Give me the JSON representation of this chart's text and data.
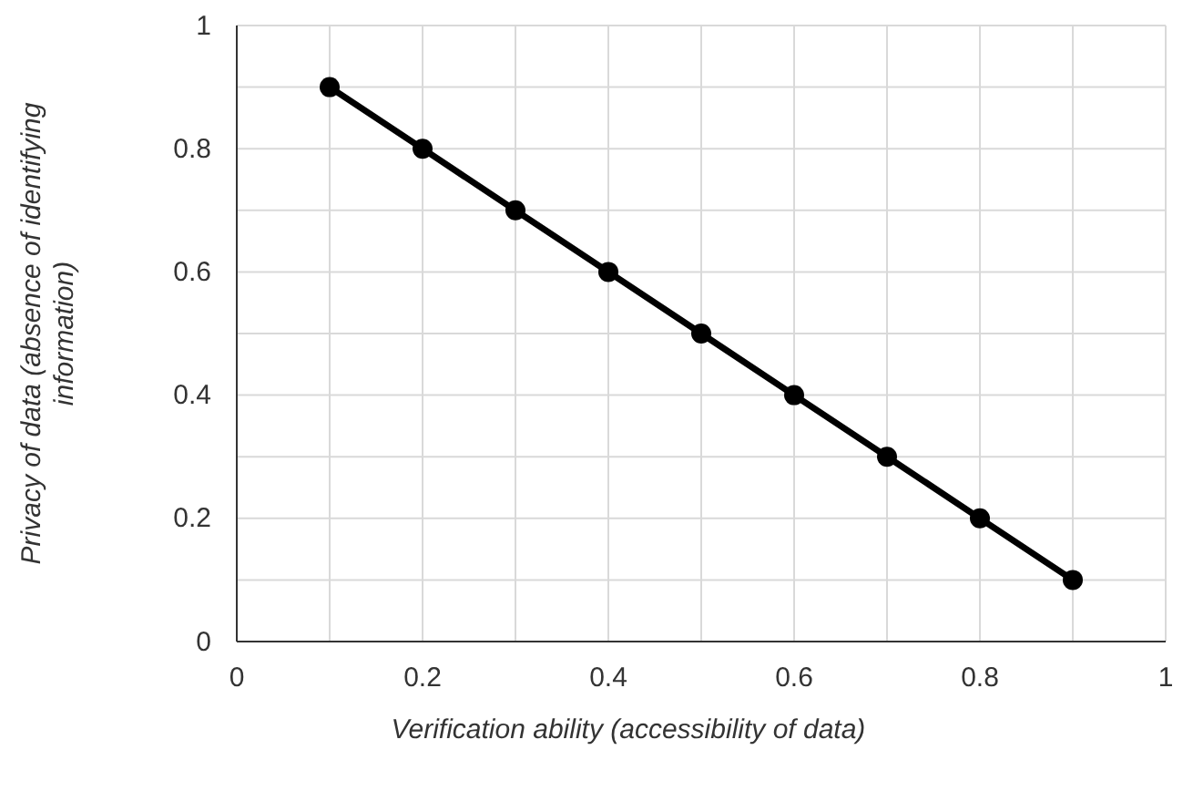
{
  "chart_data": {
    "type": "line",
    "xlabel": "Verification ability (accessibility of data)",
    "ylabel": "Privacy of data (absence of identifying information)",
    "x": [
      0.1,
      0.2,
      0.3,
      0.4,
      0.5,
      0.6,
      0.7,
      0.8,
      0.9
    ],
    "series": [
      {
        "color": "#000000",
        "values": [
          0.9,
          0.8,
          0.7,
          0.6,
          0.5,
          0.4,
          0.3,
          0.2,
          0.1
        ]
      }
    ],
    "xlim": [
      0,
      1
    ],
    "ylim": [
      0,
      1
    ],
    "xticks": [
      0,
      {
        "value": 0.1,
        "label": null
      },
      0.2,
      {
        "value": 0.3,
        "label": null
      },
      0.4,
      {
        "value": 0.5,
        "label": null
      },
      0.6,
      {
        "value": 0.7,
        "label": null
      },
      0.8,
      {
        "value": 0.9,
        "label": null
      },
      1
    ],
    "yticks": [
      0,
      {
        "value": 0.1,
        "label": null
      },
      0.2,
      {
        "value": 0.3,
        "label": null
      },
      0.4,
      {
        "value": 0.5,
        "label": null
      },
      0.6,
      {
        "value": 0.7,
        "label": null
      },
      0.8,
      {
        "value": 0.9,
        "label": null
      },
      1
    ],
    "grid": true,
    "marker": "circle",
    "line_style": "solid"
  }
}
